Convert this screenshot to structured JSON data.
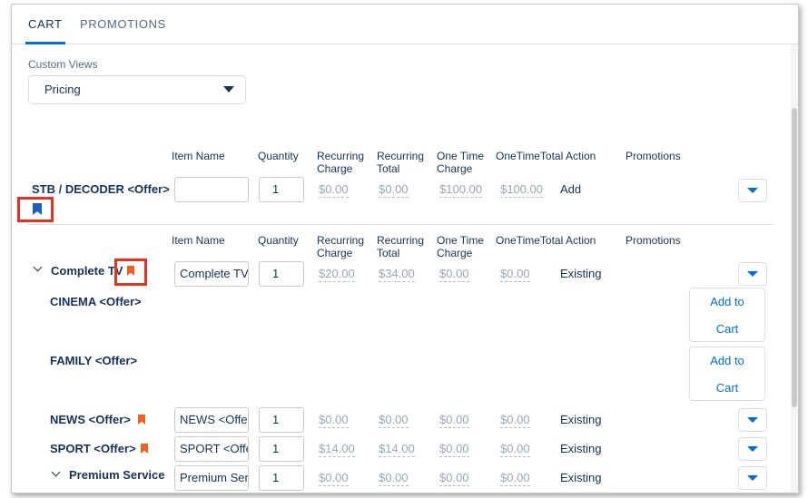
{
  "tabs": [
    {
      "label": "CART",
      "active": true
    },
    {
      "label": "PROMOTIONS",
      "active": false
    }
  ],
  "custom_views": {
    "label": "Custom Views",
    "selected": "Pricing"
  },
  "columns": {
    "item_name": "Item Name",
    "quantity": "Quantity",
    "recurring_charge_1": "Recurring",
    "recurring_charge_2": "Charge",
    "recurring_total_1": "Recurring",
    "recurring_total_2": "Total",
    "one_time_charge_1": "One Time",
    "one_time_charge_2": "Charge",
    "one_time_total": "OneTimeTotal",
    "action": "Action",
    "promotions": "Promotions"
  },
  "rows": {
    "stb": {
      "label": "STB / DECODER <Offer>",
      "item_name": "",
      "quantity": "1",
      "recurring_charge": "$0.00",
      "recurring_total": "$0.00",
      "one_time_charge": "$100.00",
      "one_time_total": "$100.00",
      "action": "Add"
    },
    "complete_tv": {
      "label": "Complete TV",
      "item_name": "Complete TV",
      "quantity": "1",
      "recurring_charge": "$20.00",
      "recurring_total": "$34.00",
      "one_time_charge": "$0.00",
      "one_time_total": "$0.00",
      "action": "Existing"
    },
    "cinema": {
      "label": "CINEMA <Offer>",
      "add_to_cart_1": "Add to",
      "add_to_cart_2": "Cart"
    },
    "family": {
      "label": "FAMILY <Offer>",
      "add_to_cart_1": "Add to",
      "add_to_cart_2": "Cart"
    },
    "news": {
      "label": "NEWS <Offer>",
      "item_name": "NEWS <Offer>",
      "quantity": "1",
      "recurring_charge": "$0.00",
      "recurring_total": "$0.00",
      "one_time_charge": "$0.00",
      "one_time_total": "$0.00",
      "action": "Existing"
    },
    "sport": {
      "label": "SPORT <Offer>",
      "item_name": "SPORT <Offer>",
      "quantity": "1",
      "recurring_charge": "$14.00",
      "recurring_total": "$14.00",
      "one_time_charge": "$0.00",
      "one_time_total": "$0.00",
      "action": "Existing"
    },
    "premium": {
      "label": "Premium Service",
      "item_name": "Premium Service",
      "quantity": "1",
      "recurring_charge": "$0.00",
      "recurring_total": "$0.00",
      "one_time_charge": "$0.00",
      "one_time_total": "$0.00",
      "action": "Existing"
    }
  },
  "colors": {
    "brand_blue": "#0070d2",
    "text_navy": "#16325c",
    "bookmark_orange": "#f0621e",
    "bookmark_blue": "#1b5fc1",
    "highlight_red": "#e8321f"
  },
  "icons": [
    "bookmark-icon",
    "chevron-down-icon",
    "dropdown-caret-icon"
  ]
}
